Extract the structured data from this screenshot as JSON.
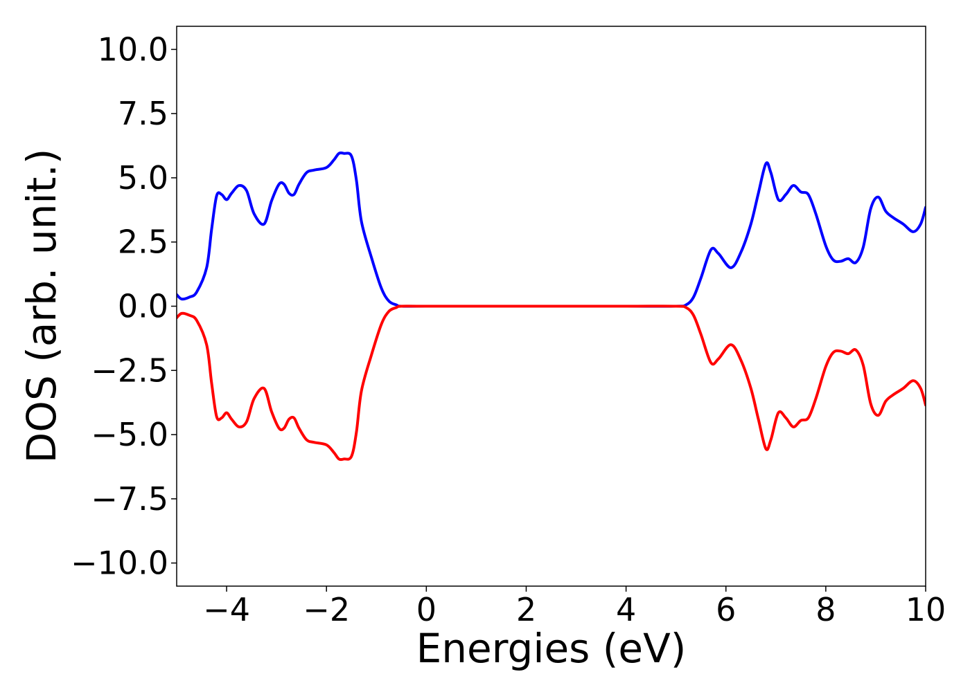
{
  "chart_data": {
    "type": "line",
    "title": "",
    "xlabel": "Energies (eV)",
    "ylabel": "DOS (arb. unit.)",
    "xlim": [
      -5,
      10
    ],
    "ylim": [
      -10.9,
      10.9
    ],
    "grid": false,
    "legend": "none",
    "x_ticks": [
      -4,
      -2,
      0,
      2,
      4,
      6,
      8,
      10
    ],
    "x_tick_labels": [
      "−4",
      "−2",
      "0",
      "2",
      "4",
      "6",
      "8",
      "10"
    ],
    "y_ticks": [
      10.0,
      7.5,
      5.0,
      2.5,
      0.0,
      -2.5,
      -5.0,
      -7.5,
      -10.0
    ],
    "y_tick_labels": [
      "10.0",
      "7.5",
      "5.0",
      "2.5",
      "0.0",
      "−2.5",
      "−5.0",
      "−7.5",
      "−10.0"
    ],
    "series": [
      {
        "color": "#0000ff",
        "x": [
          -5.0,
          -4.9,
          -4.75,
          -4.6,
          -4.4,
          -4.3,
          -4.2,
          -4.1,
          -4.0,
          -3.9,
          -3.75,
          -3.6,
          -3.45,
          -3.25,
          -3.1,
          -2.95,
          -2.85,
          -2.75,
          -2.65,
          -2.55,
          -2.4,
          -2.25,
          -2.0,
          -1.85,
          -1.75,
          -1.65,
          -1.5,
          -1.4,
          -1.3,
          -1.1,
          -0.9,
          -0.75,
          -0.6,
          -0.5,
          0.0,
          2.0,
          4.0,
          5.0,
          5.2,
          5.35,
          5.5,
          5.7,
          5.85,
          6.1,
          6.3,
          6.5,
          6.65,
          6.8,
          6.9,
          7.05,
          7.2,
          7.35,
          7.5,
          7.65,
          7.8,
          8.0,
          8.15,
          8.3,
          8.45,
          8.6,
          8.75,
          8.9,
          9.05,
          9.2,
          9.35,
          9.55,
          9.75,
          9.9,
          10.0
        ],
        "y": [
          0.45,
          0.28,
          0.35,
          0.55,
          1.5,
          3.0,
          4.3,
          4.35,
          4.15,
          4.4,
          4.7,
          4.5,
          3.6,
          3.2,
          4.1,
          4.75,
          4.75,
          4.4,
          4.35,
          4.75,
          5.2,
          5.3,
          5.4,
          5.7,
          5.95,
          5.95,
          5.85,
          4.9,
          3.3,
          1.9,
          0.7,
          0.2,
          0.05,
          0.0,
          0.0,
          0.0,
          0.0,
          0.0,
          0.05,
          0.35,
          1.1,
          2.2,
          2.05,
          1.5,
          2.1,
          3.2,
          4.4,
          5.55,
          5.2,
          4.15,
          4.35,
          4.7,
          4.45,
          4.35,
          3.6,
          2.35,
          1.8,
          1.75,
          1.85,
          1.7,
          2.3,
          3.8,
          4.25,
          3.7,
          3.45,
          3.2,
          2.9,
          3.2,
          3.85
        ]
      },
      {
        "color": "#ff0000",
        "x": [
          -5.0,
          -4.9,
          -4.75,
          -4.6,
          -4.4,
          -4.3,
          -4.2,
          -4.1,
          -4.0,
          -3.9,
          -3.75,
          -3.6,
          -3.45,
          -3.25,
          -3.1,
          -2.95,
          -2.85,
          -2.75,
          -2.65,
          -2.55,
          -2.4,
          -2.25,
          -2.0,
          -1.85,
          -1.75,
          -1.65,
          -1.5,
          -1.4,
          -1.3,
          -1.1,
          -0.9,
          -0.75,
          -0.6,
          -0.5,
          0.0,
          2.0,
          4.0,
          5.0,
          5.2,
          5.35,
          5.5,
          5.7,
          5.85,
          6.1,
          6.3,
          6.5,
          6.65,
          6.8,
          6.9,
          7.05,
          7.2,
          7.35,
          7.5,
          7.65,
          7.8,
          8.0,
          8.15,
          8.3,
          8.45,
          8.6,
          8.75,
          8.9,
          9.05,
          9.2,
          9.35,
          9.55,
          9.75,
          9.9,
          10.0
        ],
        "y": [
          -0.45,
          -0.28,
          -0.35,
          -0.55,
          -1.5,
          -3.0,
          -4.3,
          -4.35,
          -4.15,
          -4.4,
          -4.7,
          -4.5,
          -3.6,
          -3.2,
          -4.1,
          -4.75,
          -4.75,
          -4.4,
          -4.35,
          -4.75,
          -5.2,
          -5.3,
          -5.4,
          -5.7,
          -5.95,
          -5.95,
          -5.85,
          -4.9,
          -3.3,
          -1.9,
          -0.7,
          -0.2,
          -0.05,
          0.0,
          0.0,
          0.0,
          0.0,
          0.0,
          -0.05,
          -0.35,
          -1.1,
          -2.2,
          -2.05,
          -1.5,
          -2.1,
          -3.2,
          -4.4,
          -5.55,
          -5.2,
          -4.15,
          -4.35,
          -4.7,
          -4.45,
          -4.35,
          -3.6,
          -2.35,
          -1.8,
          -1.75,
          -1.85,
          -1.7,
          -2.3,
          -3.8,
          -4.25,
          -3.7,
          -3.45,
          -3.2,
          -2.9,
          -3.2,
          -3.85
        ]
      }
    ]
  }
}
